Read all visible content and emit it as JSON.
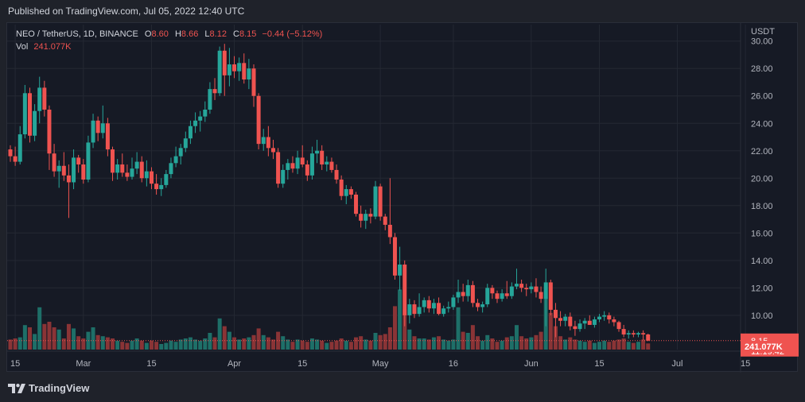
{
  "header": {
    "published": "Published on TradingView.com, Jul 05, 2022 12:40 UTC"
  },
  "legend": {
    "symbol": "NEO / TetherUS, 1D, BINANCE",
    "open_label": "O",
    "open": "8.60",
    "high_label": "H",
    "high": "8.66",
    "low_label": "L",
    "low": "8.12",
    "close_label": "C",
    "close": "8.15",
    "change": "−0.44 (−5.12%)",
    "vol_label": "Vol",
    "vol": "241.077K"
  },
  "footer": {
    "logo_text": "TradingView"
  },
  "colors": {
    "up": "#26a69a",
    "down": "#ef5350",
    "up_vol": "#1e6f68",
    "down_vol": "#8a3436",
    "grid": "#242833",
    "bg": "#161a25"
  },
  "chart_data": {
    "type": "candlestick",
    "y_unit": "USDT",
    "ylim": [
      7.5,
      31.2
    ],
    "y_ticks": [
      10,
      12,
      14,
      16,
      18,
      20,
      22,
      24,
      26,
      28,
      30
    ],
    "x_ticks": [
      {
        "label": "15",
        "date": "2022-02-15"
      },
      {
        "label": "Mar",
        "date": "2022-03-01"
      },
      {
        "label": "15",
        "date": "2022-03-15"
      },
      {
        "label": "Apr",
        "date": "2022-04-01"
      },
      {
        "label": "15",
        "date": "2022-04-15"
      },
      {
        "label": "May",
        "date": "2022-05-01"
      },
      {
        "label": "16",
        "date": "2022-05-16"
      },
      {
        "label": "Jun",
        "date": "2022-06-01"
      },
      {
        "label": "15",
        "date": "2022-06-15"
      },
      {
        "label": "Jul",
        "date": "2022-07-01"
      },
      {
        "label": "15",
        "date": "2022-07-15"
      }
    ],
    "last_price": "8.15",
    "countdown": "11:19:42",
    "last_volume": "241.077K",
    "start_date": "2022-02-14",
    "candles": [
      [
        22.1,
        22.4,
        21.2,
        21.6,
        0.9
      ],
      [
        21.6,
        22.3,
        20.9,
        21.2,
        1.0
      ],
      [
        21.2,
        23.8,
        21.0,
        23.2,
        1.1
      ],
      [
        23.2,
        26.8,
        22.9,
        26.2,
        2.2
      ],
      [
        26.2,
        26.6,
        22.6,
        23.1,
        2.0
      ],
      [
        23.1,
        25.4,
        22.7,
        24.9,
        1.4
      ],
      [
        24.9,
        27.4,
        24.0,
        26.6,
        3.8
      ],
      [
        26.6,
        27.1,
        24.5,
        25.0,
        2.3
      ],
      [
        25.0,
        25.3,
        20.6,
        21.8,
        2.5
      ],
      [
        21.8,
        22.5,
        20.1,
        20.5,
        2.0
      ],
      [
        20.5,
        21.3,
        19.3,
        20.9,
        1.8
      ],
      [
        20.9,
        21.9,
        19.8,
        20.2,
        1.0
      ],
      [
        20.2,
        21.0,
        17.1,
        19.7,
        2.3
      ],
      [
        19.7,
        22.1,
        19.2,
        21.5,
        1.9
      ],
      [
        21.5,
        21.7,
        20.4,
        21.0,
        1.2
      ],
      [
        21.0,
        21.4,
        19.6,
        19.9,
        1.0
      ],
      [
        19.9,
        23.1,
        19.7,
        22.6,
        1.6
      ],
      [
        22.6,
        24.7,
        22.2,
        24.2,
        2.0
      ],
      [
        24.2,
        24.5,
        22.7,
        23.3,
        1.3
      ],
      [
        23.3,
        25.3,
        22.9,
        24.0,
        1.2
      ],
      [
        24.0,
        24.4,
        21.6,
        22.1,
        1.1
      ],
      [
        22.1,
        22.3,
        19.8,
        20.4,
        1.0
      ],
      [
        20.4,
        21.4,
        19.9,
        21.0,
        0.8
      ],
      [
        21.0,
        21.8,
        20.1,
        20.4,
        0.7
      ],
      [
        20.4,
        21.0,
        19.8,
        20.1,
        0.6
      ],
      [
        20.1,
        21.5,
        19.9,
        20.7,
        0.8
      ],
      [
        20.7,
        21.9,
        20.3,
        21.2,
        1.0
      ],
      [
        21.2,
        21.6,
        19.7,
        20.0,
        0.8
      ],
      [
        20.0,
        21.3,
        19.4,
        20.5,
        0.6
      ],
      [
        20.5,
        20.8,
        19.2,
        19.6,
        0.8
      ],
      [
        19.6,
        20.3,
        18.8,
        19.2,
        0.7
      ],
      [
        19.2,
        20.0,
        18.7,
        19.5,
        0.5
      ],
      [
        19.5,
        20.6,
        19.3,
        20.3,
        0.6
      ],
      [
        20.3,
        21.5,
        20.0,
        21.1,
        0.8
      ],
      [
        21.1,
        22.3,
        20.8,
        21.6,
        0.7
      ],
      [
        21.6,
        22.5,
        21.0,
        22.2,
        0.9
      ],
      [
        22.2,
        23.4,
        21.9,
        22.9,
        1.0
      ],
      [
        22.9,
        24.2,
        22.5,
        23.8,
        1.1
      ],
      [
        23.8,
        24.8,
        23.3,
        24.2,
        0.9
      ],
      [
        24.2,
        24.9,
        23.4,
        24.5,
        0.8
      ],
      [
        24.5,
        25.6,
        24.1,
        25.0,
        1.0
      ],
      [
        25.0,
        27.0,
        24.7,
        26.5,
        1.5
      ],
      [
        26.5,
        27.3,
        25.7,
        26.2,
        1.1
      ],
      [
        26.2,
        29.6,
        26.0,
        29.3,
        2.8
      ],
      [
        29.3,
        29.8,
        26.0,
        27.5,
        2.1
      ],
      [
        27.5,
        29.5,
        26.7,
        28.3,
        1.6
      ],
      [
        28.3,
        28.9,
        27.3,
        27.8,
        1.1
      ],
      [
        27.8,
        28.8,
        27.1,
        28.4,
        0.9
      ],
      [
        28.4,
        29.1,
        26.9,
        27.2,
        1.0
      ],
      [
        27.2,
        28.7,
        26.5,
        28.0,
        1.1
      ],
      [
        28.0,
        28.3,
        25.2,
        26.0,
        1.3
      ],
      [
        26.0,
        26.2,
        22.1,
        22.5,
        1.9
      ],
      [
        22.5,
        23.6,
        22.0,
        23.0,
        1.3
      ],
      [
        23.0,
        23.8,
        21.6,
        22.2,
        1.1
      ],
      [
        22.2,
        22.8,
        21.4,
        21.9,
        0.9
      ],
      [
        21.9,
        22.2,
        19.3,
        19.6,
        1.6
      ],
      [
        19.6,
        21.0,
        19.3,
        20.6,
        1.2
      ],
      [
        20.6,
        21.4,
        19.9,
        21.1,
        0.9
      ],
      [
        21.1,
        21.6,
        20.4,
        20.7,
        0.7
      ],
      [
        20.7,
        22.0,
        20.3,
        21.5,
        0.9
      ],
      [
        21.5,
        22.4,
        20.8,
        21.0,
        0.8
      ],
      [
        21.0,
        21.3,
        19.8,
        20.2,
        0.7
      ],
      [
        20.2,
        22.3,
        19.9,
        21.8,
        1.0
      ],
      [
        21.8,
        22.8,
        21.1,
        22.0,
        0.9
      ],
      [
        22.0,
        22.4,
        20.6,
        21.0,
        0.8
      ],
      [
        21.0,
        21.6,
        20.5,
        21.2,
        0.6
      ],
      [
        21.2,
        21.5,
        20.4,
        20.6,
        0.7
      ],
      [
        20.6,
        21.0,
        19.6,
        19.9,
        0.8
      ],
      [
        19.9,
        20.2,
        18.4,
        18.7,
        1.0
      ],
      [
        18.7,
        19.5,
        18.1,
        19.2,
        0.8
      ],
      [
        19.2,
        19.4,
        18.5,
        18.8,
        0.7
      ],
      [
        18.8,
        19.0,
        17.2,
        17.4,
        1.1
      ],
      [
        17.4,
        18.0,
        16.4,
        16.9,
        1.2
      ],
      [
        16.9,
        17.7,
        16.3,
        17.4,
        0.9
      ],
      [
        17.4,
        17.8,
        16.7,
        17.2,
        0.8
      ],
      [
        17.2,
        19.8,
        17.0,
        19.4,
        1.5
      ],
      [
        19.4,
        19.6,
        16.9,
        17.2,
        1.3
      ],
      [
        17.2,
        17.4,
        16.2,
        16.6,
        1.4
      ],
      [
        16.6,
        20.0,
        15.2,
        15.7,
        2.0
      ],
      [
        15.7,
        16.0,
        12.6,
        12.9,
        3.9
      ],
      [
        12.9,
        15.0,
        11.8,
        13.7,
        5.4
      ],
      [
        13.7,
        14.0,
        9.2,
        10.0,
        3.6
      ],
      [
        10.0,
        11.2,
        9.4,
        10.8,
        1.8
      ],
      [
        10.8,
        11.1,
        9.8,
        10.1,
        1.2
      ],
      [
        10.1,
        11.6,
        9.9,
        10.6,
        1.0
      ],
      [
        10.6,
        11.3,
        10.2,
        11.1,
        1.0
      ],
      [
        11.1,
        11.4,
        10.2,
        10.5,
        0.9
      ],
      [
        10.5,
        11.2,
        10.1,
        10.9,
        1.1
      ],
      [
        10.9,
        11.3,
        10.0,
        10.1,
        1.2
      ],
      [
        10.1,
        10.7,
        9.9,
        10.5,
        0.9
      ],
      [
        10.5,
        11.0,
        10.2,
        10.6,
        0.8
      ],
      [
        10.6,
        11.5,
        10.4,
        11.3,
        0.9
      ],
      [
        11.3,
        12.6,
        10.9,
        11.7,
        3.8
      ],
      [
        11.7,
        12.3,
        11.0,
        11.4,
        1.6
      ],
      [
        11.4,
        12.6,
        11.0,
        12.2,
        1.5
      ],
      [
        12.2,
        12.5,
        10.6,
        10.9,
        2.2
      ],
      [
        10.9,
        11.2,
        10.3,
        10.6,
        1.2
      ],
      [
        10.6,
        11.0,
        10.2,
        10.8,
        0.8
      ],
      [
        10.8,
        12.3,
        10.6,
        12.0,
        1.3
      ],
      [
        12.0,
        12.2,
        11.2,
        11.6,
        1.0
      ],
      [
        11.6,
        11.8,
        10.9,
        11.2,
        0.7
      ],
      [
        11.2,
        11.9,
        11.0,
        11.6,
        0.8
      ],
      [
        11.6,
        12.5,
        11.2,
        11.4,
        1.1
      ],
      [
        11.4,
        12.4,
        11.2,
        12.1,
        1.2
      ],
      [
        12.1,
        13.4,
        11.9,
        12.3,
        2.2
      ],
      [
        12.3,
        12.6,
        11.7,
        12.0,
        1.2
      ],
      [
        12.0,
        12.3,
        11.4,
        11.9,
        1.0
      ],
      [
        11.9,
        12.4,
        11.6,
        12.1,
        1.1
      ],
      [
        12.1,
        12.7,
        11.3,
        11.7,
        1.3
      ],
      [
        11.7,
        12.1,
        10.9,
        11.2,
        1.6
      ],
      [
        11.2,
        13.4,
        9.2,
        12.4,
        4.6
      ],
      [
        12.4,
        12.6,
        10.0,
        10.4,
        3.3
      ],
      [
        10.4,
        10.9,
        8.4,
        9.8,
        2.1
      ],
      [
        9.8,
        10.3,
        9.2,
        9.6,
        1.2
      ],
      [
        9.6,
        10.1,
        9.2,
        9.9,
        0.9
      ],
      [
        9.9,
        10.2,
        8.9,
        9.2,
        1.1
      ],
      [
        9.2,
        9.6,
        8.5,
        9.0,
        0.9
      ],
      [
        9.0,
        9.7,
        8.8,
        9.4,
        0.8
      ],
      [
        9.4,
        9.8,
        9.0,
        9.6,
        0.7
      ],
      [
        9.6,
        10.0,
        9.3,
        9.3,
        0.8
      ],
      [
        9.3,
        9.9,
        9.1,
        9.7,
        0.6
      ],
      [
        9.7,
        10.1,
        9.5,
        9.9,
        0.7
      ],
      [
        9.9,
        10.3,
        9.6,
        10.0,
        0.8
      ],
      [
        10.0,
        10.2,
        9.4,
        9.7,
        0.7
      ],
      [
        9.7,
        9.9,
        9.2,
        9.5,
        0.8
      ],
      [
        9.5,
        9.6,
        8.8,
        9.0,
        0.9
      ],
      [
        9.0,
        9.3,
        8.4,
        8.6,
        1.0
      ],
      [
        8.6,
        8.9,
        8.3,
        8.7,
        0.7
      ],
      [
        8.7,
        8.9,
        8.4,
        8.6,
        0.6
      ],
      [
        8.6,
        8.8,
        8.4,
        8.7,
        0.7
      ],
      [
        8.7,
        8.9,
        8.2,
        8.6,
        0.9
      ],
      [
        8.6,
        8.66,
        8.12,
        8.15,
        0.55
      ]
    ]
  }
}
